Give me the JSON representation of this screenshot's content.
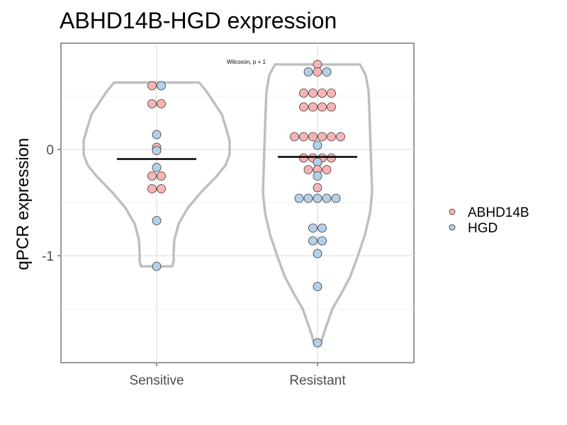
{
  "chart_data": {
    "type": "violin",
    "title": "ABHD14B-HGD expression",
    "xlabel": "",
    "ylabel": "qPCR expression",
    "categories": [
      "Sensitive",
      "Resistant"
    ],
    "yticks": [
      0,
      -1
    ],
    "ytick_labels": [
      "0",
      "-1"
    ],
    "ylim": [
      -2.0,
      0.98
    ],
    "grid": true,
    "annotation": "Wilcoxon, p = 1",
    "legend": {
      "position": "right",
      "entries": [
        {
          "name": "ABHD14B",
          "color": "#F8B4B4"
        },
        {
          "name": "HGD",
          "color": "#B4D0E8"
        }
      ]
    },
    "colors": {
      "violin_outline": "#BFBFBF",
      "median_line": "#000000",
      "point_edge": "#333333"
    },
    "groups": [
      {
        "category": "Sensitive",
        "median": -0.09,
        "y_min": -1.1,
        "y_max": 0.63,
        "points": [
          {
            "y": 0.6,
            "series": "ABHD14B"
          },
          {
            "y": 0.6,
            "series": "HGD"
          },
          {
            "y": 0.43,
            "series": "ABHD14B"
          },
          {
            "y": 0.43,
            "series": "ABHD14B"
          },
          {
            "y": 0.14,
            "series": "HGD"
          },
          {
            "y": 0.02,
            "series": "ABHD14B"
          },
          {
            "y": -0.01,
            "series": "HGD"
          },
          {
            "y": -0.17,
            "series": "HGD"
          },
          {
            "y": -0.25,
            "series": "ABHD14B"
          },
          {
            "y": -0.25,
            "series": "ABHD14B"
          },
          {
            "y": -0.37,
            "series": "ABHD14B"
          },
          {
            "y": -0.37,
            "series": "ABHD14B"
          },
          {
            "y": -0.67,
            "series": "HGD"
          },
          {
            "y": -1.1,
            "series": "HGD"
          }
        ]
      },
      {
        "category": "Resistant",
        "median": -0.07,
        "y_min": -1.82,
        "y_max": 0.8,
        "points": [
          {
            "y": 0.8,
            "series": "ABHD14B"
          },
          {
            "y": 0.73,
            "series": "HGD"
          },
          {
            "y": 0.73,
            "series": "ABHD14B"
          },
          {
            "y": 0.73,
            "series": "HGD"
          },
          {
            "y": 0.53,
            "series": "ABHD14B"
          },
          {
            "y": 0.53,
            "series": "ABHD14B"
          },
          {
            "y": 0.53,
            "series": "ABHD14B"
          },
          {
            "y": 0.53,
            "series": "ABHD14B"
          },
          {
            "y": 0.4,
            "series": "ABHD14B"
          },
          {
            "y": 0.4,
            "series": "ABHD14B"
          },
          {
            "y": 0.4,
            "series": "ABHD14B"
          },
          {
            "y": 0.4,
            "series": "ABHD14B"
          },
          {
            "y": 0.12,
            "series": "ABHD14B"
          },
          {
            "y": 0.12,
            "series": "ABHD14B"
          },
          {
            "y": 0.12,
            "series": "ABHD14B"
          },
          {
            "y": 0.12,
            "series": "ABHD14B"
          },
          {
            "y": 0.12,
            "series": "ABHD14B"
          },
          {
            "y": 0.12,
            "series": "ABHD14B"
          },
          {
            "y": 0.04,
            "series": "HGD"
          },
          {
            "y": -0.08,
            "series": "ABHD14B"
          },
          {
            "y": -0.08,
            "series": "ABHD14B"
          },
          {
            "y": -0.08,
            "series": "ABHD14B"
          },
          {
            "y": -0.08,
            "series": "ABHD14B"
          },
          {
            "y": -0.12,
            "series": "HGD"
          },
          {
            "y": -0.19,
            "series": "ABHD14B"
          },
          {
            "y": -0.19,
            "series": "ABHD14B"
          },
          {
            "y": -0.19,
            "series": "ABHD14B"
          },
          {
            "y": -0.25,
            "series": "HGD"
          },
          {
            "y": -0.36,
            "series": "ABHD14B"
          },
          {
            "y": -0.46,
            "series": "HGD"
          },
          {
            "y": -0.46,
            "series": "HGD"
          },
          {
            "y": -0.46,
            "series": "HGD"
          },
          {
            "y": -0.46,
            "series": "HGD"
          },
          {
            "y": -0.46,
            "series": "HGD"
          },
          {
            "y": -0.74,
            "series": "HGD"
          },
          {
            "y": -0.74,
            "series": "HGD"
          },
          {
            "y": -0.86,
            "series": "HGD"
          },
          {
            "y": -0.86,
            "series": "HGD"
          },
          {
            "y": -0.98,
            "series": "HGD"
          },
          {
            "y": -1.29,
            "series": "HGD"
          },
          {
            "y": -1.82,
            "series": "HGD"
          }
        ]
      }
    ]
  }
}
